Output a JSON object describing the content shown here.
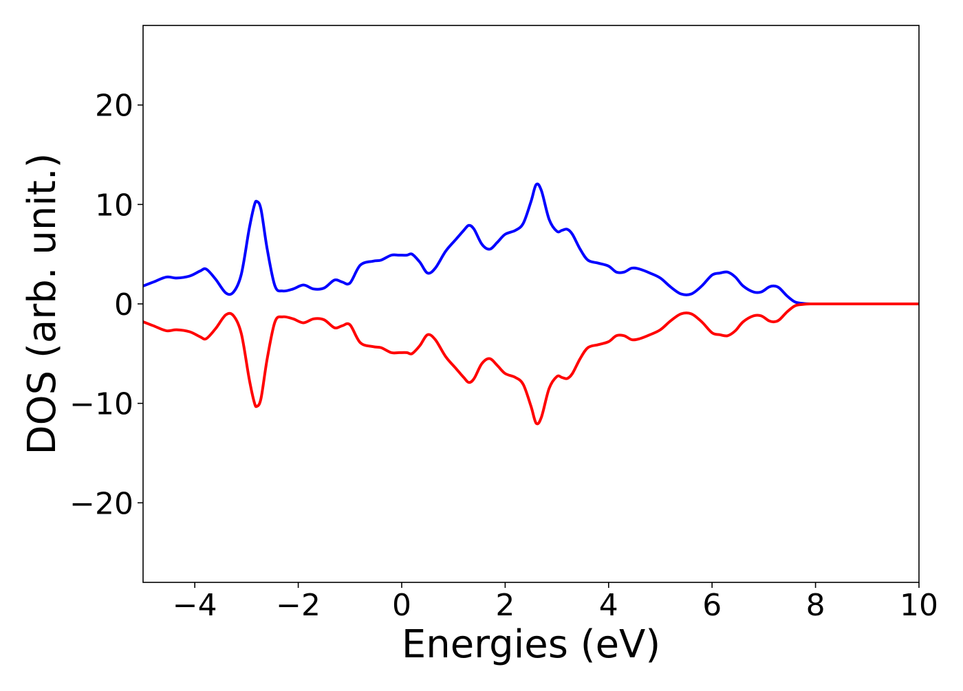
{
  "chart_data": {
    "type": "line",
    "title": "",
    "xlabel": "Energies (eV)",
    "ylabel": "DOS (arb. unit.)",
    "xlim": [
      -5,
      10
    ],
    "ylim": [
      -28,
      28
    ],
    "xticks": [
      -4,
      -2,
      0,
      2,
      4,
      6,
      8,
      10
    ],
    "yticks": [
      -20,
      -10,
      0,
      10,
      20
    ],
    "xtick_labels": [
      "−4",
      "−2",
      "0",
      "2",
      "4",
      "6",
      "8",
      "10"
    ],
    "ytick_labels": [
      "−20",
      "−10",
      "0",
      "10",
      "20"
    ],
    "grid": false,
    "legend": "none",
    "series": [
      {
        "color": "#0000ff",
        "x": [
          -5.0,
          -4.8,
          -4.55,
          -4.35,
          -4.1,
          -3.9,
          -3.78,
          -3.6,
          -3.4,
          -3.25,
          -3.1,
          -2.95,
          -2.85,
          -2.8,
          -2.72,
          -2.6,
          -2.45,
          -2.3,
          -2.1,
          -1.9,
          -1.7,
          -1.5,
          -1.3,
          -1.15,
          -1.0,
          -0.8,
          -0.55,
          -0.4,
          -0.2,
          -0.05,
          0.1,
          0.2,
          0.35,
          0.5,
          0.65,
          0.85,
          1.05,
          1.2,
          1.3,
          1.4,
          1.55,
          1.7,
          1.85,
          2.0,
          2.2,
          2.35,
          2.5,
          2.6,
          2.7,
          2.85,
          3.0,
          3.1,
          3.2,
          3.3,
          3.45,
          3.6,
          3.8,
          4.0,
          4.15,
          4.3,
          4.45,
          4.6,
          4.8,
          5.0,
          5.2,
          5.4,
          5.6,
          5.8,
          6.0,
          6.15,
          6.3,
          6.45,
          6.6,
          6.8,
          6.95,
          7.1,
          7.2,
          7.3,
          7.45,
          7.6,
          7.75,
          7.9,
          8.2,
          9.0,
          10.0
        ],
        "values": [
          1.8,
          2.2,
          2.7,
          2.6,
          2.8,
          3.3,
          3.5,
          2.5,
          1.1,
          1.2,
          3.0,
          7.5,
          9.9,
          10.3,
          9.5,
          5.5,
          1.8,
          1.3,
          1.5,
          1.9,
          1.5,
          1.6,
          2.4,
          2.2,
          2.1,
          3.9,
          4.3,
          4.4,
          4.9,
          4.9,
          4.9,
          5.0,
          4.2,
          3.1,
          3.6,
          5.3,
          6.5,
          7.4,
          7.9,
          7.5,
          6.0,
          5.5,
          6.2,
          7.0,
          7.4,
          8.1,
          10.3,
          12.0,
          11.4,
          8.5,
          7.3,
          7.4,
          7.5,
          7.0,
          5.5,
          4.4,
          4.1,
          3.8,
          3.2,
          3.2,
          3.6,
          3.5,
          3.1,
          2.6,
          1.7,
          1.0,
          1.0,
          1.8,
          2.9,
          3.1,
          3.2,
          2.7,
          1.8,
          1.2,
          1.2,
          1.7,
          1.8,
          1.6,
          0.8,
          0.2,
          0.05,
          0.0,
          0.0,
          0.0,
          0.0
        ]
      },
      {
        "color": "#ff0000",
        "x": [
          -5.0,
          -4.8,
          -4.55,
          -4.35,
          -4.1,
          -3.9,
          -3.78,
          -3.6,
          -3.4,
          -3.25,
          -3.1,
          -2.95,
          -2.85,
          -2.8,
          -2.72,
          -2.6,
          -2.45,
          -2.3,
          -2.1,
          -1.9,
          -1.7,
          -1.5,
          -1.3,
          -1.15,
          -1.0,
          -0.8,
          -0.55,
          -0.4,
          -0.2,
          -0.05,
          0.1,
          0.2,
          0.35,
          0.5,
          0.65,
          0.85,
          1.05,
          1.2,
          1.3,
          1.4,
          1.55,
          1.7,
          1.85,
          2.0,
          2.2,
          2.35,
          2.5,
          2.6,
          2.7,
          2.85,
          3.0,
          3.1,
          3.2,
          3.3,
          3.45,
          3.6,
          3.8,
          4.0,
          4.15,
          4.3,
          4.45,
          4.6,
          4.8,
          5.0,
          5.2,
          5.4,
          5.6,
          5.8,
          6.0,
          6.15,
          6.3,
          6.45,
          6.6,
          6.8,
          6.95,
          7.1,
          7.2,
          7.3,
          7.45,
          7.6,
          7.75,
          7.9,
          8.2,
          9.0,
          10.0
        ],
        "values": [
          -1.8,
          -2.2,
          -2.7,
          -2.6,
          -2.8,
          -3.3,
          -3.5,
          -2.5,
          -1.1,
          -1.2,
          -3.0,
          -7.5,
          -9.9,
          -10.3,
          -9.5,
          -5.5,
          -1.8,
          -1.3,
          -1.5,
          -1.9,
          -1.5,
          -1.6,
          -2.4,
          -2.2,
          -2.1,
          -3.9,
          -4.3,
          -4.4,
          -4.9,
          -4.9,
          -4.9,
          -5.0,
          -4.2,
          -3.1,
          -3.6,
          -5.3,
          -6.5,
          -7.4,
          -7.9,
          -7.5,
          -6.0,
          -5.5,
          -6.2,
          -7.0,
          -7.4,
          -8.1,
          -10.3,
          -12.0,
          -11.4,
          -8.5,
          -7.3,
          -7.4,
          -7.5,
          -7.0,
          -5.5,
          -4.4,
          -4.1,
          -3.8,
          -3.2,
          -3.2,
          -3.6,
          -3.5,
          -3.1,
          -2.6,
          -1.7,
          -1.0,
          -1.0,
          -1.8,
          -2.9,
          -3.1,
          -3.2,
          -2.7,
          -1.8,
          -1.2,
          -1.2,
          -1.7,
          -1.8,
          -1.6,
          -0.8,
          -0.2,
          -0.05,
          0.0,
          0.0,
          0.0,
          0.0
        ]
      }
    ]
  }
}
